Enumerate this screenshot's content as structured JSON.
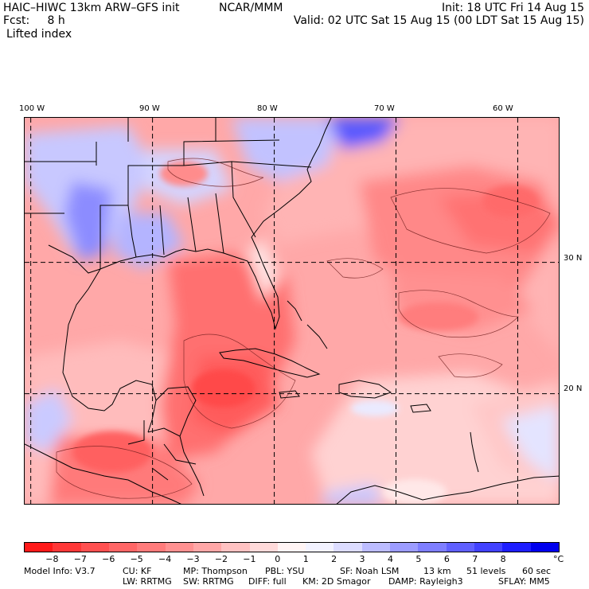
{
  "header": {
    "model": "HAIC–HIWC 13km ARW–GFS init",
    "org": "NCAR/MMM",
    "init": "Init: 18 UTC Fri 14 Aug 15",
    "fcst": "Fcst:     8 h",
    "valid": "Valid: 02 UTC Sat 15 Aug 15 (00 LDT Sat 15 Aug 15)",
    "field": "Lifted index"
  },
  "map": {
    "lon_labels": [
      "100 W",
      "90 W",
      "80 W",
      "70 W",
      "60 W"
    ],
    "lat_labels": [
      "30 N",
      "20 N"
    ],
    "lon_range": [
      -100.5,
      -56.5
    ],
    "lat_range": [
      11.5,
      41
    ],
    "grid_lons": [
      -100,
      -90,
      -80,
      -70,
      -60
    ],
    "grid_lats": [
      30,
      20
    ]
  },
  "legend": {
    "unit": "°C",
    "labels": [
      "−8",
      "−7",
      "−6",
      "−5",
      "−4",
      "−3",
      "−2",
      "−1",
      "0",
      "1",
      "2",
      "3",
      "4",
      "5",
      "6",
      "7",
      "8"
    ],
    "colors": [
      "#ff1a1a",
      "#ff3838",
      "#ff5050",
      "#ff6666",
      "#ff7b7b",
      "#ff9191",
      "#ffa7a7",
      "#ffc2c2",
      "#ffdada",
      "#fff4f4",
      "#f2f2ff",
      "#dcdcff",
      "#bcbcff",
      "#9c9cff",
      "#7e7eff",
      "#6060ff",
      "#4242ff",
      "#1e1eff",
      "#0000ee"
    ]
  },
  "footer": {
    "line1": [
      "Model Info: V3.7",
      "CU: KF",
      "MP: Thompson",
      "PBL: YSU",
      "SF: Noah LSM",
      "13 km",
      "51 levels",
      "60 sec"
    ],
    "line2": [
      "LW: RRTMG",
      "SW: RRTMG",
      "DIFF: full",
      "KM: 2D Smagor",
      "DAMP: Rayleigh3",
      "SFLAY: MM5"
    ]
  }
}
